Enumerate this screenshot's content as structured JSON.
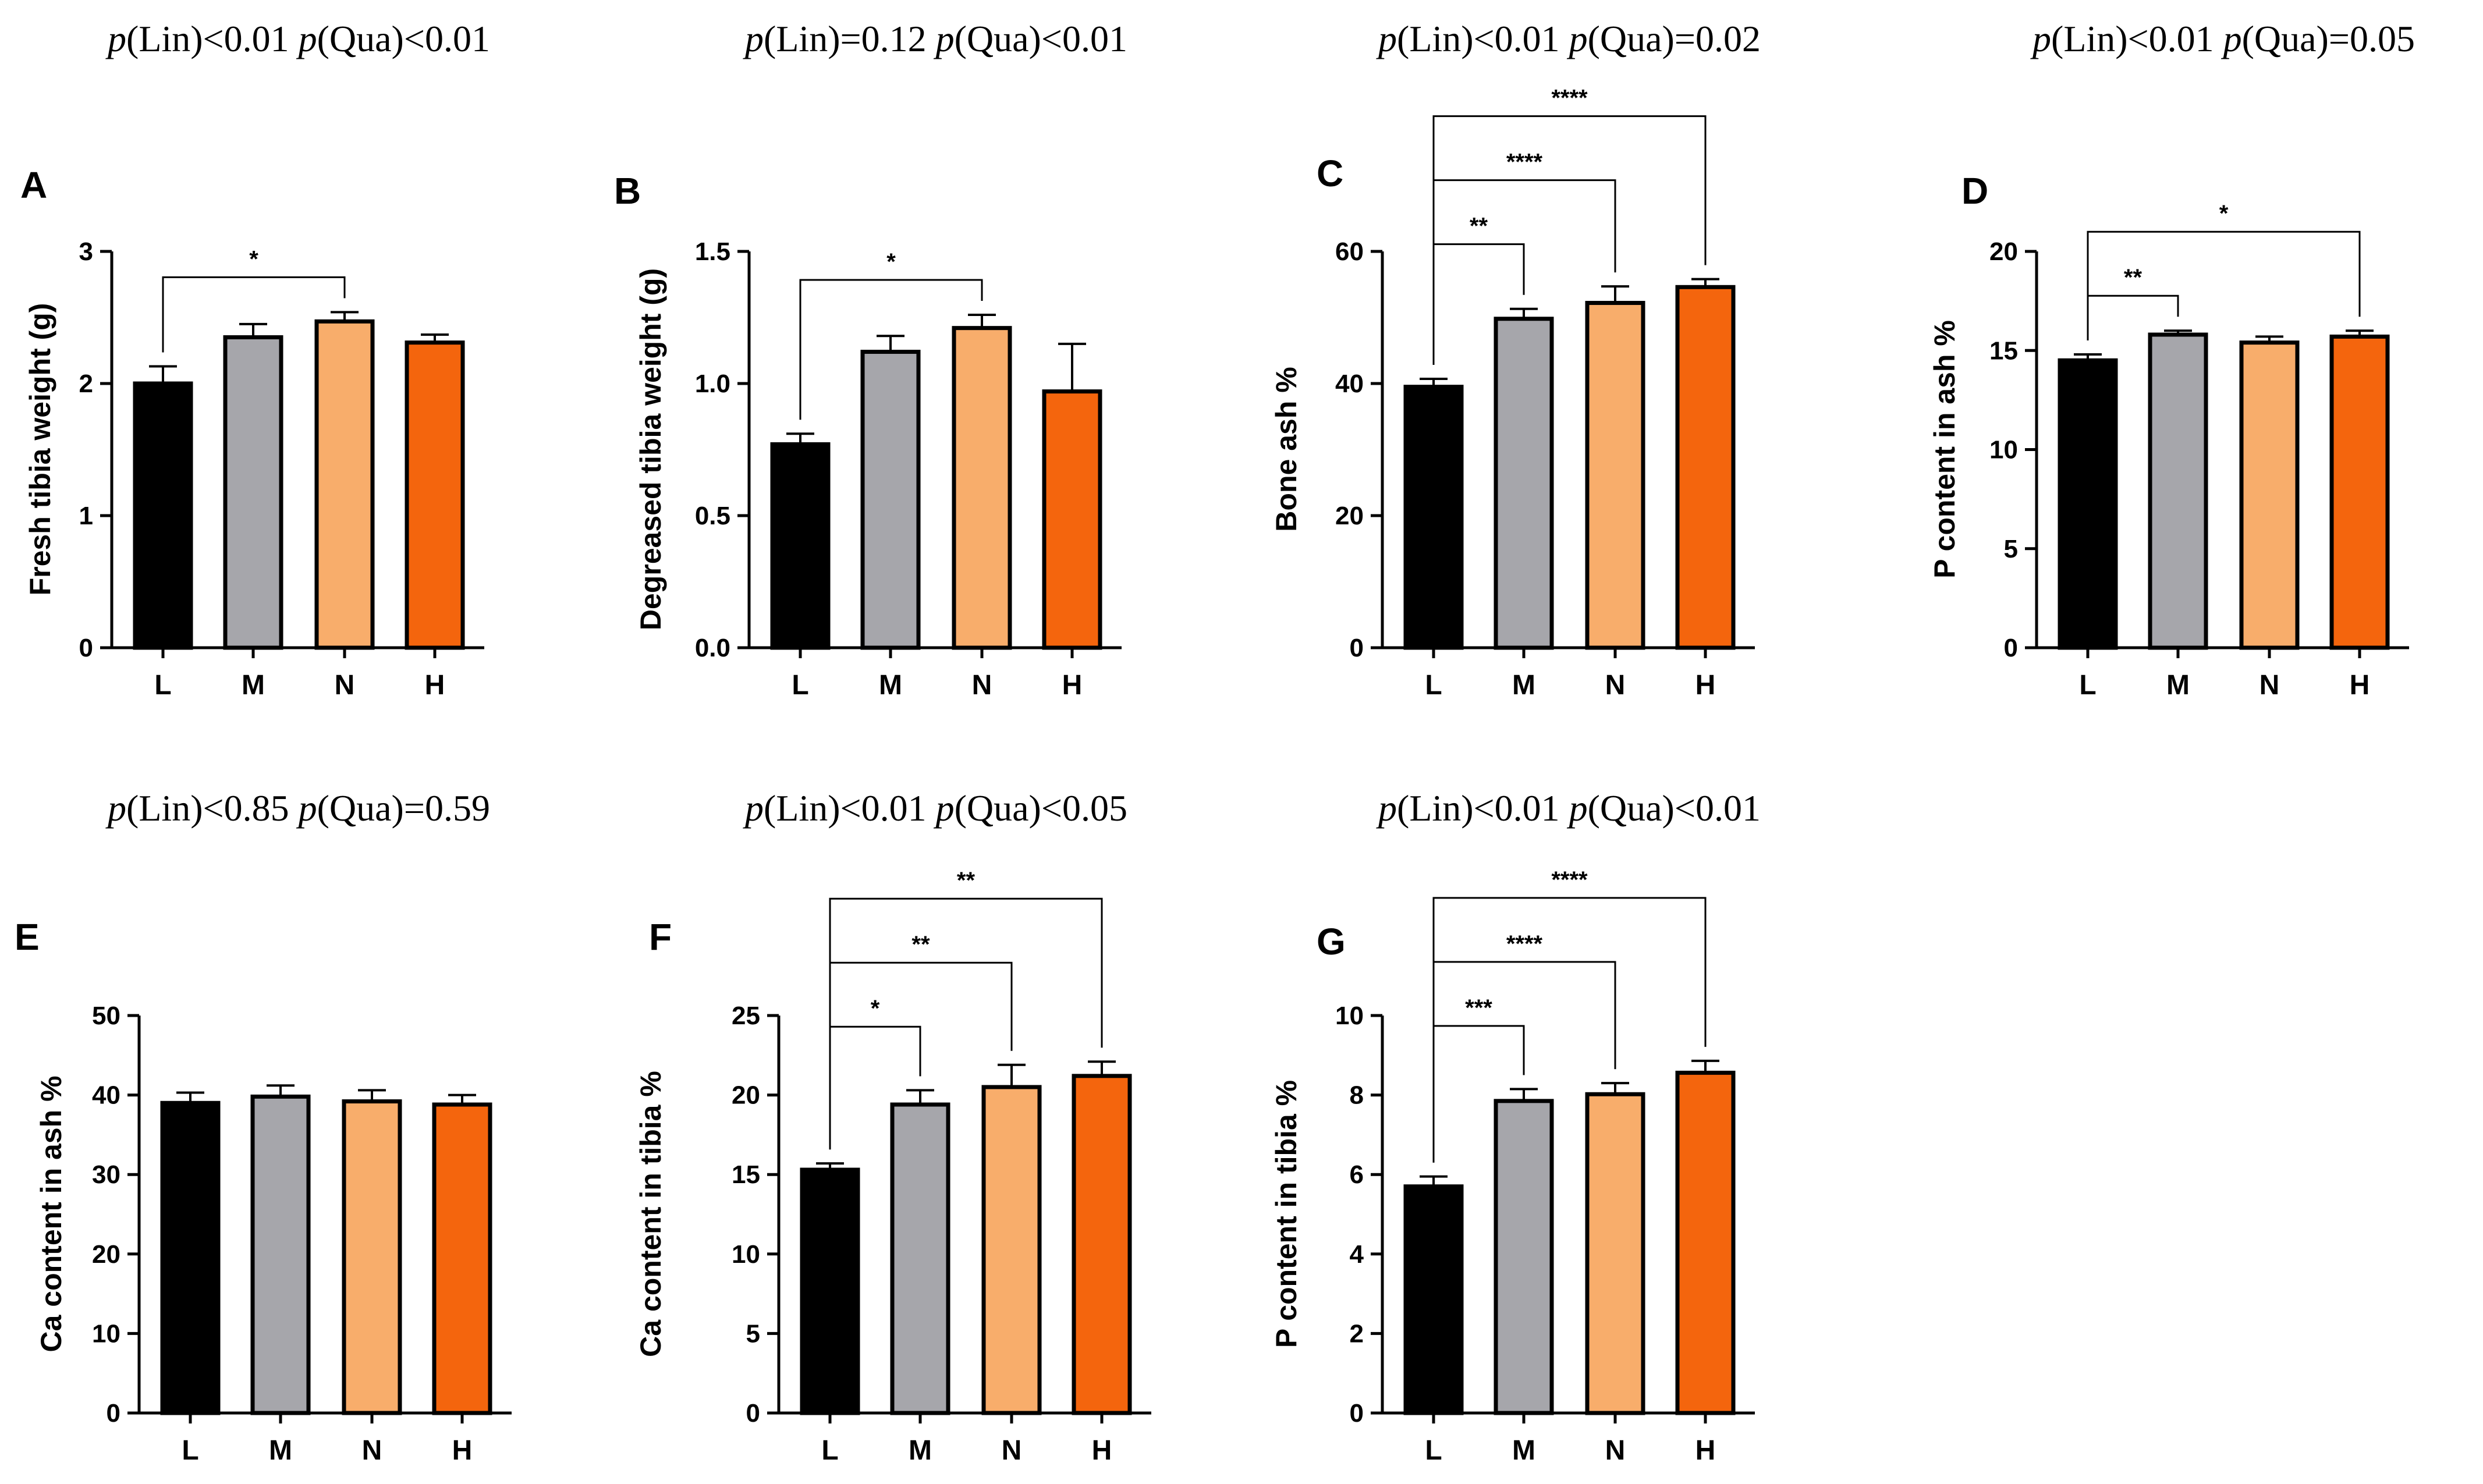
{
  "figure": {
    "background": "#ffffff"
  },
  "chart_data": [
    {
      "panel": "A",
      "type": "bar",
      "p_text": {
        "lin_label": "p",
        "lin_part": "(Lin)<0.01 ",
        "qua_label": "p",
        "qua_part": "(Qua)<0.01"
      },
      "ylabel": "Fresh tibia weight (g)",
      "xlabel": "",
      "categories": [
        "L",
        "M",
        "N",
        "H"
      ],
      "colors": [
        "#000000",
        "#a6a6ab",
        "#f8ad6b",
        "#f4650d"
      ],
      "values": [
        2.0,
        2.35,
        2.47,
        2.31
      ],
      "errors": [
        0.13,
        0.1,
        0.07,
        0.06
      ],
      "ylim": [
        0,
        3
      ],
      "yticks": [
        "0",
        "1",
        "2",
        "3"
      ],
      "tick_values": [
        0,
        1,
        2,
        3
      ],
      "significance": [
        {
          "from": 0,
          "to": 2,
          "label": "*"
        }
      ]
    },
    {
      "panel": "B",
      "type": "bar",
      "p_text": {
        "lin_label": "p",
        "lin_part": "(Lin)=0.12 ",
        "qua_label": "p",
        "qua_part": "(Qua)<0.01"
      },
      "ylabel": "Degreased tibia weight (g)",
      "xlabel": "",
      "categories": [
        "L",
        "M",
        "N",
        "H"
      ],
      "colors": [
        "#000000",
        "#a6a6ab",
        "#f8ad6b",
        "#f4650d"
      ],
      "values": [
        0.77,
        1.12,
        1.21,
        0.97
      ],
      "errors": [
        0.04,
        0.06,
        0.05,
        0.18
      ],
      "ylim": [
        0,
        1.5
      ],
      "yticks": [
        "0.0",
        "0.5",
        "1.0",
        "1.5"
      ],
      "tick_values": [
        0,
        0.5,
        1.0,
        1.5
      ],
      "significance": [
        {
          "from": 0,
          "to": 2,
          "label": "*"
        }
      ]
    },
    {
      "panel": "C",
      "type": "bar",
      "p_text": {
        "lin_label": "p",
        "lin_part": "(Lin)<0.01 ",
        "qua_label": "p",
        "qua_part": "(Qua)=0.02"
      },
      "ylabel": "Bone ash %",
      "xlabel": "",
      "categories": [
        "L",
        "M",
        "N",
        "H"
      ],
      "colors": [
        "#000000",
        "#a6a6ab",
        "#f8ad6b",
        "#f4650d"
      ],
      "values": [
        39.5,
        49.8,
        52.2,
        54.6
      ],
      "errors": [
        1.2,
        1.5,
        2.5,
        1.2
      ],
      "ylim": [
        0,
        60
      ],
      "yticks": [
        "0",
        "20",
        "40",
        "60"
      ],
      "tick_values": [
        0,
        20,
        40,
        60
      ],
      "significance": [
        {
          "from": 0,
          "to": 1,
          "label": "**"
        },
        {
          "from": 0,
          "to": 2,
          "label": "****"
        },
        {
          "from": 0,
          "to": 3,
          "label": "****"
        }
      ]
    },
    {
      "panel": "D",
      "type": "bar",
      "p_text": {
        "lin_label": "p",
        "lin_part": "(Lin)<0.01 ",
        "qua_label": "p",
        "qua_part": "(Qua)=0.05"
      },
      "ylabel": "P content in ash %",
      "xlabel": "",
      "categories": [
        "L",
        "M",
        "N",
        "H"
      ],
      "colors": [
        "#000000",
        "#a6a6ab",
        "#f8ad6b",
        "#f4650d"
      ],
      "values": [
        14.5,
        15.8,
        15.4,
        15.7
      ],
      "errors": [
        0.3,
        0.2,
        0.3,
        0.3
      ],
      "ylim": [
        0,
        20
      ],
      "yticks": [
        "0",
        "5",
        "10",
        "15",
        "20"
      ],
      "tick_values": [
        0,
        5,
        10,
        15,
        20
      ],
      "significance": [
        {
          "from": 0,
          "to": 1,
          "label": "**"
        },
        {
          "from": 0,
          "to": 3,
          "label": "*"
        }
      ]
    },
    {
      "panel": "E",
      "type": "bar",
      "p_text": {
        "lin_label": "p",
        "lin_part": "(Lin)<0.85 ",
        "qua_label": "p",
        "qua_part": "(Qua)=0.59"
      },
      "ylabel": "Ca content in ash %",
      "xlabel": "",
      "categories": [
        "L",
        "M",
        "N",
        "H"
      ],
      "colors": [
        "#000000",
        "#a6a6ab",
        "#f8ad6b",
        "#f4650d"
      ],
      "values": [
        39.0,
        39.8,
        39.2,
        38.8
      ],
      "errors": [
        1.3,
        1.4,
        1.4,
        1.2
      ],
      "ylim": [
        0,
        50
      ],
      "yticks": [
        "0",
        "10",
        "20",
        "30",
        "40",
        "50"
      ],
      "tick_values": [
        0,
        10,
        20,
        30,
        40,
        50
      ],
      "significance": []
    },
    {
      "panel": "F",
      "type": "bar",
      "p_text": {
        "lin_label": "p",
        "lin_part": "(Lin)<0.01 ",
        "qua_label": "p",
        "qua_part": "(Qua)<0.05"
      },
      "ylabel": "Ca content in tibia %",
      "xlabel": "",
      "categories": [
        "L",
        "M",
        "N",
        "H"
      ],
      "colors": [
        "#000000",
        "#a6a6ab",
        "#f8ad6b",
        "#f4650d"
      ],
      "values": [
        15.3,
        19.4,
        20.5,
        21.2
      ],
      "errors": [
        0.4,
        0.9,
        1.4,
        0.9
      ],
      "ylim": [
        0,
        25
      ],
      "yticks": [
        "0",
        "5",
        "10",
        "15",
        "20",
        "25"
      ],
      "tick_values": [
        0,
        5,
        10,
        15,
        20,
        25
      ],
      "significance": [
        {
          "from": 0,
          "to": 1,
          "label": "*"
        },
        {
          "from": 0,
          "to": 2,
          "label": "**"
        },
        {
          "from": 0,
          "to": 3,
          "label": "**"
        }
      ]
    },
    {
      "panel": "G",
      "type": "bar",
      "p_text": {
        "lin_label": "p",
        "lin_part": "(Lin)<0.01 ",
        "qua_label": "p",
        "qua_part": "(Qua)<0.01"
      },
      "ylabel": "P content in tibia %",
      "xlabel": "",
      "categories": [
        "L",
        "M",
        "N",
        "H"
      ],
      "colors": [
        "#000000",
        "#a6a6ab",
        "#f8ad6b",
        "#f4650d"
      ],
      "values": [
        5.7,
        7.85,
        8.02,
        8.56
      ],
      "errors": [
        0.25,
        0.3,
        0.28,
        0.3
      ],
      "ylim": [
        0,
        10
      ],
      "yticks": [
        "0",
        "2",
        "4",
        "6",
        "8",
        "10"
      ],
      "tick_values": [
        0,
        2,
        4,
        6,
        8,
        10
      ],
      "significance": [
        {
          "from": 0,
          "to": 1,
          "label": "***"
        },
        {
          "from": 0,
          "to": 2,
          "label": "****"
        },
        {
          "from": 0,
          "to": 3,
          "label": "****"
        }
      ]
    }
  ]
}
